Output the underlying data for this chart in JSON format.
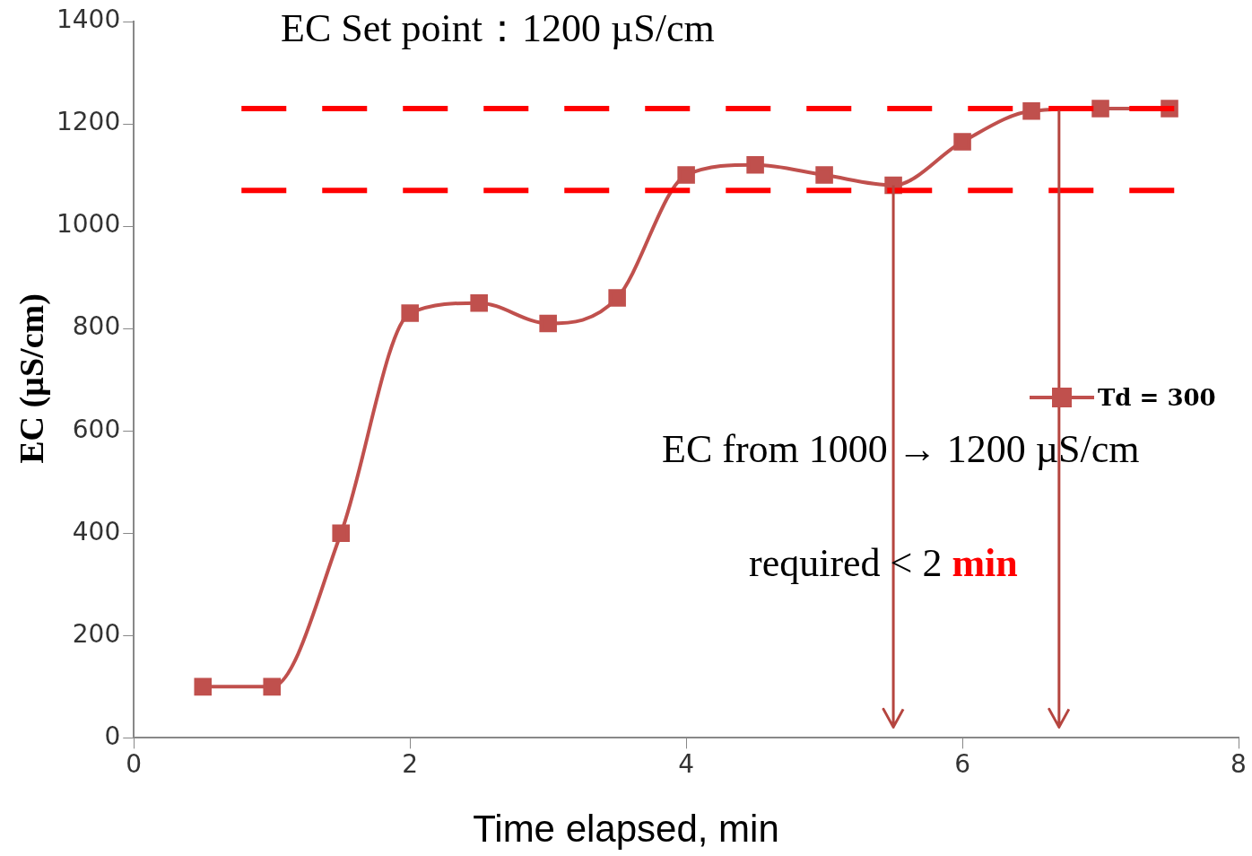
{
  "chart_data": {
    "type": "line",
    "title": "EC Set point：1200 µS/cm",
    "xlabel": "Time elapsed, min",
    "ylabel": "EC (µS/cm)",
    "x": [
      0.5,
      1,
      1.5,
      2,
      2.5,
      3,
      3.5,
      4,
      4.5,
      5,
      5.5,
      6,
      6.5,
      7,
      7.5
    ],
    "series": [
      {
        "name": "Td = 300",
        "color": "#c0504d",
        "values": [
          100,
          100,
          400,
          830,
          850,
          810,
          860,
          1100,
          1120,
          1100,
          1080,
          1165,
          1225,
          1230,
          1230
        ]
      }
    ],
    "xlim": [
      0,
      8
    ],
    "xticks": [
      0,
      2,
      4,
      6,
      8
    ],
    "ylim": [
      0,
      1400
    ],
    "yticks": [
      0,
      200,
      400,
      600,
      800,
      1000,
      1200,
      1400
    ],
    "ref_lines": [
      {
        "axis": "y",
        "value": 1230,
        "color": "#ff0000",
        "line_style": "dashed"
      },
      {
        "axis": "y",
        "value": 1070,
        "color": "#ff0000",
        "line_style": "dashed"
      },
      {
        "axis": "x",
        "value": 5.5,
        "color": "#b5453f",
        "line_style": "solid"
      },
      {
        "axis": "x",
        "value": 6.7,
        "color": "#b5453f",
        "line_style": "solid"
      }
    ],
    "annotations": [
      "EC from 1000 → 1200 µS/cm",
      "required < 2 min"
    ],
    "grid": false,
    "legend": "right",
    "marker": "square",
    "line_style": "solid"
  }
}
